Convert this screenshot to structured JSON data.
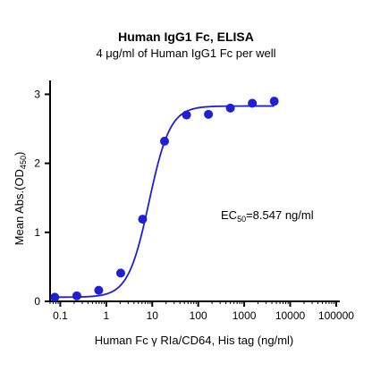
{
  "chart_data": {
    "type": "scatter",
    "title": "Human IgG1 Fc, ELISA",
    "subtitle": "4 μg/ml of Human IgG1 Fc per well",
    "xlabel": "Human Fc γ RIa/CD64, His tag (ng/ml)",
    "ylabel_main": "Mean Abs.(OD",
    "ylabel_sub": "450",
    "ylabel_close": ")",
    "x_scale": "log",
    "xlim": [
      0.06,
      120000
    ],
    "ylim": [
      0,
      3.2
    ],
    "x_ticks": [
      0.1,
      1,
      10,
      100,
      1000,
      10000,
      100000
    ],
    "x_tick_labels": [
      "0.1",
      "1",
      "10",
      "100",
      "1000",
      "10000",
      "100000"
    ],
    "y_ticks": [
      0,
      1,
      2,
      3
    ],
    "y_tick_labels": [
      "0",
      "1",
      "2",
      "3"
    ],
    "grid": false,
    "series": [
      {
        "x": [
          0.076,
          0.229,
          0.686,
          2.06,
          6.17,
          18.5,
          55.6,
          167,
          500,
          1500,
          4500
        ],
        "y": [
          0.06,
          0.08,
          0.16,
          0.41,
          1.19,
          2.32,
          2.7,
          2.71,
          2.8,
          2.87,
          2.9
        ],
        "color": "#1f1fd6",
        "fit": {
          "model": "4PL",
          "bottom": 0.06,
          "top": 2.83,
          "ec50": 8.547,
          "hill": 1.9
        }
      }
    ],
    "annotation": {
      "main": "EC",
      "sub": "50",
      "rest": "=8.547 ng/ml"
    }
  }
}
